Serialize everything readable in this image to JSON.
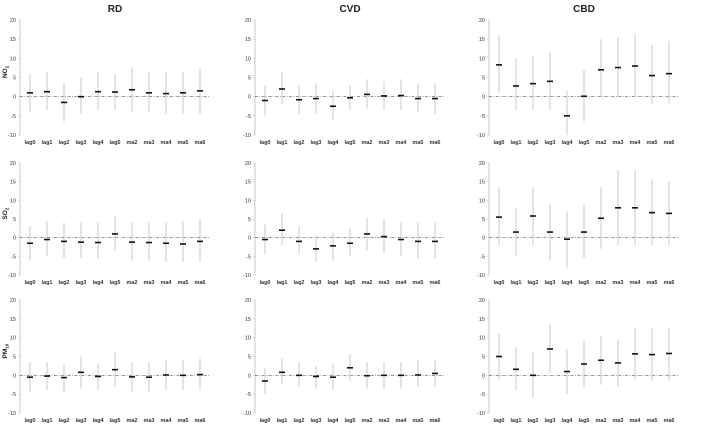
{
  "chart_data": {
    "type": "scatter",
    "columns": [
      "RD",
      "CVD",
      "CBD"
    ],
    "rows": [
      {
        "label": "NO",
        "sub": "2"
      },
      {
        "label": "SO",
        "sub": "2"
      },
      {
        "label": "PM",
        "sub": "10"
      }
    ],
    "categories": [
      "lag0",
      "lag1",
      "lag2",
      "lag3",
      "lag4",
      "lag5",
      "ma2",
      "ma3",
      "ma4",
      "ma5",
      "ma6"
    ],
    "yticks": [
      -10,
      -5,
      0,
      5,
      10,
      15,
      20
    ],
    "ylim": [
      -10,
      20
    ],
    "reference_line": 0,
    "panels": [
      {
        "row": 0,
        "col": 0,
        "estimate": [
          1.0,
          1.3,
          -1.5,
          0.0,
          1.3,
          1.2,
          1.8,
          1.0,
          0.8,
          1.0,
          1.5
        ],
        "lower": [
          -4,
          -3.5,
          -6.5,
          -4.5,
          -3.5,
          -3.5,
          -4,
          -4,
          -4.5,
          -4.5,
          -4.5
        ],
        "upper": [
          6,
          6.5,
          3.5,
          5,
          6.5,
          6,
          7.5,
          6.5,
          6.5,
          6.5,
          7.5
        ]
      },
      {
        "row": 0,
        "col": 1,
        "estimate": [
          -1.0,
          2.0,
          -0.8,
          -0.5,
          -2.5,
          -0.3,
          0.6,
          0.2,
          0.3,
          -0.5,
          -0.5
        ],
        "lower": [
          -5,
          -2,
          -4.5,
          -4.5,
          -6,
          -3.5,
          -3,
          -3.5,
          -3.5,
          -4,
          -4.5
        ],
        "upper": [
          3,
          6.5,
          3,
          3.5,
          1.5,
          3,
          4.5,
          4,
          4.5,
          3.5,
          3.5
        ]
      },
      {
        "row": 0,
        "col": 2,
        "estimate": [
          8.3,
          2.8,
          3.4,
          4.0,
          -5.0,
          0.1,
          7.0,
          7.6,
          8.0,
          5.5,
          6.0
        ],
        "lower": [
          1,
          -3.5,
          -3.5,
          -3.5,
          -10,
          -6.5,
          0,
          0,
          0,
          -2,
          -2
        ],
        "upper": [
          16,
          10,
          10.5,
          11.5,
          1.5,
          7,
          15,
          15.5,
          16.5,
          13.5,
          14.5
        ]
      },
      {
        "row": 1,
        "col": 0,
        "estimate": [
          -1.5,
          -0.5,
          -1.0,
          -1.2,
          -1.3,
          1.0,
          -1.2,
          -1.3,
          -1.5,
          -1.7,
          -1.0
        ],
        "lower": [
          -6,
          -5,
          -5.5,
          -5.5,
          -5.5,
          -3.5,
          -6,
          -6,
          -6.5,
          -6.5,
          -6.5
        ],
        "upper": [
          3,
          4.5,
          4,
          4,
          4,
          6,
          4,
          4,
          4,
          4.5,
          5
        ]
      },
      {
        "row": 1,
        "col": 1,
        "estimate": [
          -0.5,
          2.0,
          -1.0,
          -3.0,
          -2.2,
          -1.5,
          1.0,
          0.3,
          -0.5,
          -1.0,
          -1.0
        ],
        "lower": [
          -4.5,
          -2,
          -4.5,
          -6.5,
          -6,
          -5,
          -3.5,
          -4,
          -5,
          -5.5,
          -5.5
        ],
        "upper": [
          3.5,
          6.5,
          3,
          0.5,
          1.5,
          2.5,
          5.5,
          5,
          4,
          4,
          4
        ]
      },
      {
        "row": 1,
        "col": 2,
        "estimate": [
          5.5,
          1.5,
          5.8,
          1.5,
          -0.4,
          1.5,
          5.2,
          8.0,
          8.0,
          6.7,
          6.5
        ],
        "lower": [
          -2,
          -5,
          -2,
          -6,
          -8,
          -5.5,
          -3,
          -2,
          -2,
          -2,
          -2
        ],
        "upper": [
          13.5,
          8,
          13.5,
          9,
          7,
          9,
          13.5,
          18,
          18,
          15.5,
          15
        ]
      },
      {
        "row": 2,
        "col": 0,
        "estimate": [
          -0.5,
          -0.2,
          -0.6,
          0.8,
          -0.3,
          1.5,
          -0.4,
          -0.5,
          0.1,
          0.0,
          0.2
        ],
        "lower": [
          -4.5,
          -4,
          -4.5,
          -3.5,
          -4,
          -3,
          -4.5,
          -4.5,
          -4,
          -4,
          -4
        ],
        "upper": [
          3.5,
          3.5,
          3,
          5,
          3,
          6,
          3.5,
          3.5,
          4,
          4,
          4.5
        ]
      },
      {
        "row": 2,
        "col": 1,
        "estimate": [
          -1.5,
          0.8,
          0.0,
          -0.3,
          -0.5,
          2.0,
          -0.1,
          0.0,
          0.0,
          0.1,
          0.5
        ],
        "lower": [
          -5,
          -2.5,
          -3,
          -3.5,
          -4,
          -1.5,
          -3.5,
          -3.5,
          -3.5,
          -3,
          -3
        ],
        "upper": [
          2,
          4.5,
          3.5,
          2.5,
          3,
          5.5,
          3.5,
          3.5,
          3.5,
          4,
          4
        ]
      },
      {
        "row": 2,
        "col": 2,
        "estimate": [
          5.0,
          1.6,
          0.0,
          7.0,
          1.0,
          3.0,
          4.0,
          3.3,
          5.7,
          5.5,
          5.8
        ],
        "lower": [
          -1,
          -4,
          -6,
          0.5,
          -5,
          -3,
          -2.5,
          -3,
          -1,
          -1.5,
          -1.5
        ],
        "upper": [
          11,
          7.5,
          6,
          13.5,
          7,
          9,
          10.5,
          9.5,
          12.5,
          12.5,
          12.5
        ]
      }
    ]
  }
}
